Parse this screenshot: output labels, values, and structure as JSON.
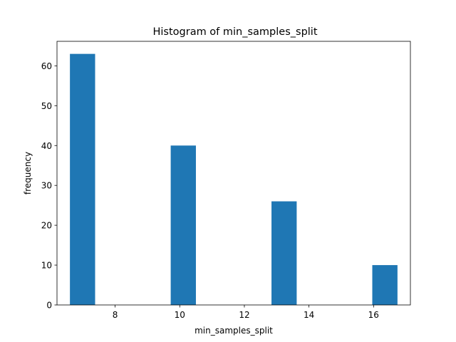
{
  "chart_data": {
    "type": "bar",
    "title": "Histogram of min_samples_split",
    "xlabel": "min_samples_split",
    "ylabel": "frequency",
    "bins": [
      {
        "x0": 6.6,
        "x1": 7.38,
        "value": 63
      },
      {
        "x0": 7.38,
        "x1": 8.16,
        "value": 0
      },
      {
        "x0": 8.16,
        "x1": 8.94,
        "value": 0
      },
      {
        "x0": 8.94,
        "x1": 9.72,
        "value": 0
      },
      {
        "x0": 9.72,
        "x1": 10.5,
        "value": 40
      },
      {
        "x0": 10.5,
        "x1": 11.28,
        "value": 0
      },
      {
        "x0": 11.28,
        "x1": 12.06,
        "value": 0
      },
      {
        "x0": 12.06,
        "x1": 12.84,
        "value": 0
      },
      {
        "x0": 12.84,
        "x1": 13.62,
        "value": 26
      },
      {
        "x0": 13.62,
        "x1": 14.4,
        "value": 0
      },
      {
        "x0": 14.4,
        "x1": 15.18,
        "value": 0
      },
      {
        "x0": 15.18,
        "x1": 15.96,
        "value": 0
      },
      {
        "x0": 15.96,
        "x1": 16.74,
        "value": 10
      }
    ],
    "xlim": [
      6.2,
      17.14
    ],
    "ylim": [
      0,
      66.15
    ],
    "xticks": [
      8,
      10,
      12,
      14,
      16
    ],
    "yticks": [
      0,
      10,
      20,
      30,
      40,
      50,
      60
    ],
    "grid": false,
    "bar_color": "#1f77b4"
  }
}
